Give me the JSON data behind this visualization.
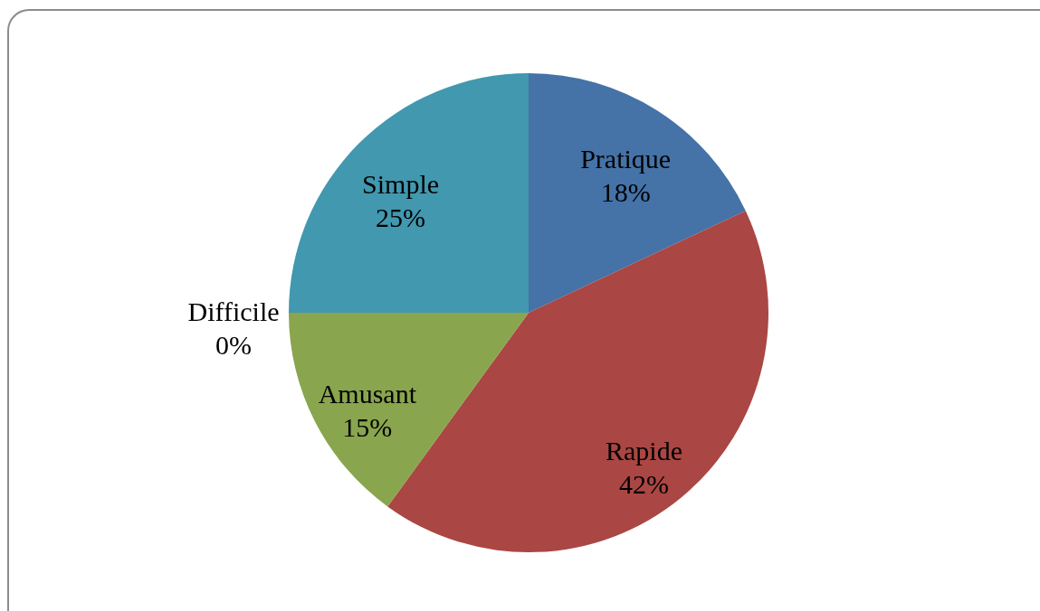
{
  "chart_data": {
    "type": "pie",
    "categories": [
      "Pratique",
      "Rapide",
      "Amusant",
      "Difficile",
      "Simple"
    ],
    "values": [
      18,
      42,
      15,
      0,
      25
    ],
    "colors": [
      "#4572a7",
      "#aa4643",
      "#89a54e",
      "#80699b",
      "#4198af"
    ],
    "value_labels": [
      "18%",
      "42%",
      "15%",
      "0%",
      "25%"
    ]
  }
}
